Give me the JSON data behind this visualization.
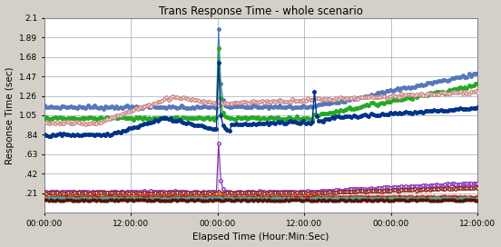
{
  "title": "Trans Response Time - whole scenario",
  "xlabel": "Elapsed Time (Hour:Min:Sec)",
  "ylabel": "Response Time (sec)",
  "ylim": [
    0.0,
    2.1
  ],
  "yticks": [
    0.21,
    0.42,
    0.63,
    0.84,
    1.05,
    1.26,
    1.47,
    1.68,
    1.89,
    2.1
  ],
  "ytick_labels": [
    ".21",
    ".42",
    ".63",
    ".84",
    "1.05",
    "1.26",
    "1.47",
    "1.68",
    "1.89",
    "2.1"
  ],
  "xtick_labels": [
    "00:00:00",
    "12:00:00",
    "00:00:00",
    "12:00:00",
    "00:00:00",
    "12:00:00"
  ],
  "n_points": 200,
  "bg_color": "#d4d0c8",
  "plot_bg": "#ffffff",
  "grid_color": "#a0a8b8"
}
